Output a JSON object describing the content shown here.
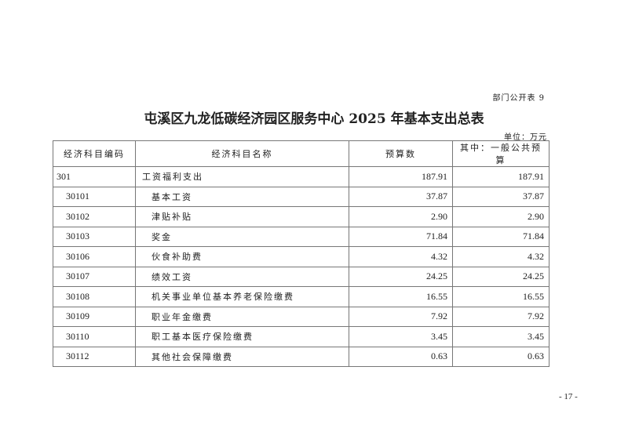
{
  "doc": {
    "table_tag": "部门公开表 9",
    "title": "屯溪区九龙低碳经济园区服务中心 2025 年基本支出总表",
    "unit": "单位：万元",
    "page_number": "- 17 -"
  },
  "table": {
    "headers": [
      "经济科目编码",
      "经济科目名称",
      "预算数",
      "其中：一般公共预算"
    ],
    "rows": [
      {
        "code": "301",
        "name": "工资福利支出",
        "budget": "187.91",
        "general": "187.91"
      },
      {
        "code": "30101",
        "name": "基本工资",
        "budget": "37.87",
        "general": "37.87"
      },
      {
        "code": "30102",
        "name": "津贴补贴",
        "budget": "2.90",
        "general": "2.90"
      },
      {
        "code": "30103",
        "name": "奖金",
        "budget": "71.84",
        "general": "71.84"
      },
      {
        "code": "30106",
        "name": "伙食补助费",
        "budget": "4.32",
        "general": "4.32"
      },
      {
        "code": "30107",
        "name": "绩效工资",
        "budget": "24.25",
        "general": "24.25"
      },
      {
        "code": "30108",
        "name": "机关事业单位基本养老保险缴费",
        "budget": "16.55",
        "general": "16.55"
      },
      {
        "code": "30109",
        "name": "职业年金缴费",
        "budget": "7.92",
        "general": "7.92"
      },
      {
        "code": "30110",
        "name": "职工基本医疗保险缴费",
        "budget": "3.45",
        "general": "3.45"
      },
      {
        "code": "30112",
        "name": "其他社会保障缴费",
        "budget": "0.63",
        "general": "0.63"
      }
    ]
  }
}
